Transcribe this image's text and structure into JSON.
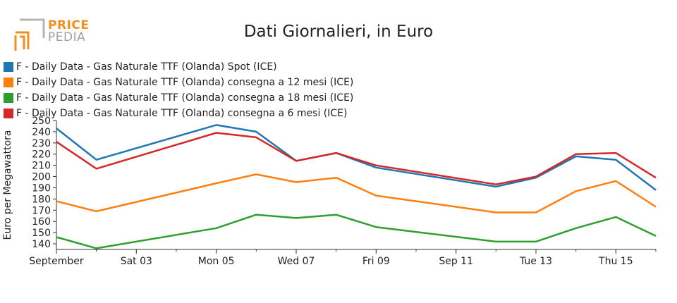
{
  "logo": {
    "line1": "PRICE",
    "line2": "PEDIA",
    "primary_color": "#f0901e",
    "secondary_color": "#a0a0a0"
  },
  "chart_data": {
    "type": "line",
    "title": "Dati Giornalieri, in Euro",
    "xlabel": "",
    "ylabel": "Euro per Megawattora",
    "x": [
      "2022-09-01",
      "2022-09-02",
      "2022-09-05",
      "2022-09-06",
      "2022-09-07",
      "2022-09-08",
      "2022-09-09",
      "2022-09-12",
      "2022-09-13",
      "2022-09-14",
      "2022-09-15",
      "2022-09-16"
    ],
    "x_ticks": [
      {
        "date": "2022-09-01",
        "label": "September"
      },
      {
        "date": "2022-09-03",
        "label": "Sat 03"
      },
      {
        "date": "2022-09-05",
        "label": "Mon 05"
      },
      {
        "date": "2022-09-07",
        "label": "Wed 07"
      },
      {
        "date": "2022-09-09",
        "label": "Fri 09"
      },
      {
        "date": "2022-09-11",
        "label": "Sep 11"
      },
      {
        "date": "2022-09-13",
        "label": "Tue 13"
      },
      {
        "date": "2022-09-15",
        "label": "Thu 15"
      }
    ],
    "xlim": [
      "2022-09-01",
      "2022-09-16"
    ],
    "ylim": [
      135,
      250
    ],
    "y_ticks": [
      140,
      150,
      160,
      170,
      180,
      190,
      200,
      210,
      220,
      230,
      240,
      250
    ],
    "grid": false,
    "legend_position": "top-left",
    "series": [
      {
        "name": "F - Daily Data - Gas Naturale TTF (Olanda) Spot (ICE)",
        "color": "#1f77b4",
        "values": [
          243,
          215,
          246,
          240,
          214,
          221,
          208,
          191,
          199,
          218,
          215,
          188
        ]
      },
      {
        "name": "F - Daily Data - Gas Naturale TTF (Olanda) consegna a 12 mesi (ICE)",
        "color": "#ff7f0e",
        "values": [
          178,
          169,
          194,
          202,
          195,
          199,
          183,
          168,
          168,
          187,
          196,
          173
        ]
      },
      {
        "name": "F - Daily Data - Gas Naturale TTF (Olanda) consegna a 18 mesi (ICE)",
        "color": "#2ca02c",
        "values": [
          146,
          136,
          154,
          166,
          163,
          166,
          155,
          142,
          142,
          154,
          164,
          147
        ]
      },
      {
        "name": "F - Daily Data - Gas Naturale TTF (Olanda) consegna a 6 mesi (ICE)",
        "color": "#d62728",
        "values": [
          231,
          207,
          239,
          235,
          214,
          221,
          210,
          193,
          200,
          220,
          221,
          199
        ]
      }
    ]
  }
}
